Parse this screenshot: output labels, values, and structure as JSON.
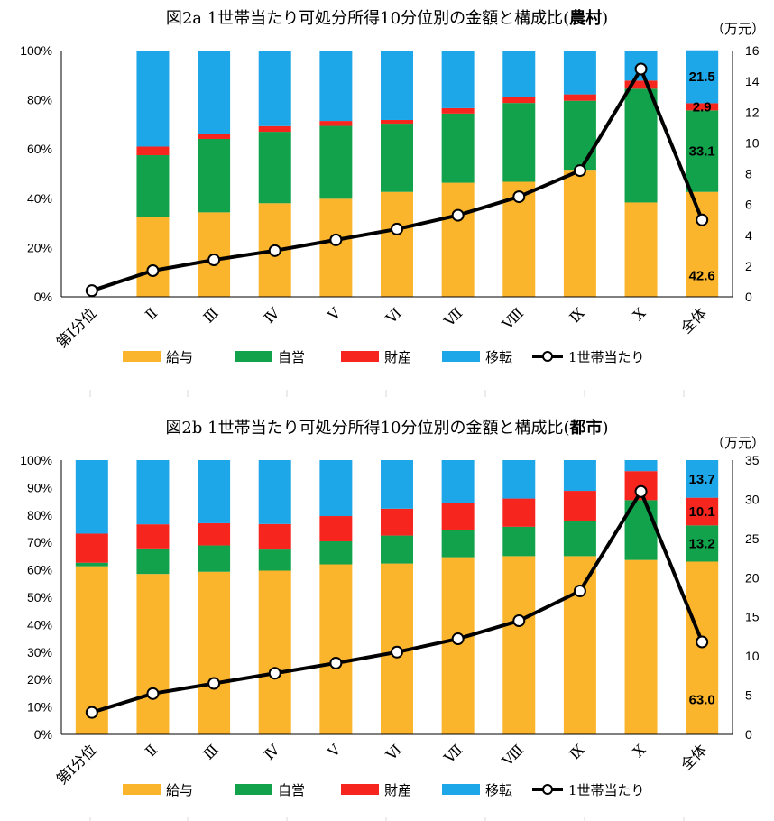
{
  "colors": {
    "salary": "#FBB52D",
    "self": "#12A24B",
    "property": "#F6261F",
    "transfer": "#1EA7E8",
    "line": "#000000"
  },
  "chart_data": [
    {
      "type": "bar",
      "stacked": true,
      "percent": true,
      "title_main": "図2a 1世帯当たり可処分所得10分位別の金額と構成比(",
      "title_em": "農村",
      "title_end": ")",
      "secondary_unit": "（万元）",
      "categories": [
        "第Ⅰ分位",
        "Ⅱ",
        "Ⅲ",
        "Ⅳ",
        "Ⅴ",
        "Ⅵ",
        "Ⅶ",
        "Ⅷ",
        "Ⅸ",
        "Ⅹ",
        "全体"
      ],
      "ylim": [
        0,
        100
      ],
      "y_ticks": [
        "0%",
        "20%",
        "40%",
        "60%",
        "80%",
        "100%"
      ],
      "y2lim": [
        0,
        16
      ],
      "y2_ticks": [
        "0",
        "2",
        "4",
        "6",
        "8",
        "10",
        "12",
        "14",
        "16"
      ],
      "legend_position": "bottom",
      "series": [
        {
          "name": "給与",
          "color_key": "salary",
          "values": [
            0,
            32.5,
            34.3,
            38,
            39.8,
            42.6,
            46.3,
            46.7,
            51.6,
            38.3,
            42.6
          ]
        },
        {
          "name": "自営",
          "color_key": "self",
          "values": [
            0,
            25,
            29.8,
            29,
            29.6,
            27.7,
            28.1,
            32,
            28,
            46.2,
            33.1
          ]
        },
        {
          "name": "財産",
          "color_key": "property",
          "values": [
            0,
            3.5,
            2,
            2.3,
            2,
            1.5,
            2.2,
            2.4,
            2.6,
            3.3,
            2.9
          ]
        },
        {
          "name": "移転",
          "color_key": "transfer",
          "values": [
            0,
            39,
            33.9,
            30.7,
            28.6,
            28.2,
            23.4,
            18.9,
            17.8,
            12.2,
            21.5
          ]
        }
      ],
      "line": {
        "name": "1世帯当たり",
        "values": [
          0.4,
          1.7,
          2.4,
          3.0,
          3.7,
          4.4,
          5.3,
          6.5,
          8.2,
          14.8,
          5.0
        ]
      },
      "data_labels": [
        {
          "label": "21.5",
          "series": 3
        },
        {
          "label": "2.9",
          "series": 2
        },
        {
          "label": "33.1",
          "series": 1
        },
        {
          "label": "42.6",
          "series": 0
        }
      ]
    },
    {
      "type": "bar",
      "stacked": true,
      "percent": true,
      "title_main": "図2b 1世帯当たり可処分所得10分位別の金額と構成比(",
      "title_em": "都市",
      "title_end": ")",
      "secondary_unit": "（万元）",
      "categories": [
        "第Ⅰ分位",
        "Ⅱ",
        "Ⅲ",
        "Ⅳ",
        "Ⅴ",
        "Ⅵ",
        "Ⅶ",
        "Ⅷ",
        "Ⅸ",
        "Ⅹ",
        "全体"
      ],
      "ylim": [
        0,
        100
      ],
      "y_ticks": [
        "0%",
        "10%",
        "20%",
        "30%",
        "40%",
        "50%",
        "60%",
        "70%",
        "80%",
        "90%",
        "100%"
      ],
      "y2lim": [
        0,
        35
      ],
      "y2_ticks": [
        "0",
        "5",
        "10",
        "15",
        "20",
        "25",
        "30",
        "35"
      ],
      "legend_position": "bottom",
      "series": [
        {
          "name": "給与",
          "color_key": "salary",
          "values": [
            61.3,
            58.5,
            59.3,
            59.7,
            62,
            62.3,
            64.6,
            65,
            65,
            63.6,
            63.0
          ]
        },
        {
          "name": "自営",
          "color_key": "self",
          "values": [
            1.3,
            9.3,
            9.6,
            7.7,
            8.4,
            10.2,
            9.8,
            10.7,
            12.7,
            21.8,
            13.2
          ]
        },
        {
          "name": "財産",
          "color_key": "property",
          "values": [
            10.6,
            8.8,
            8.1,
            9.3,
            9.2,
            9.8,
            10,
            10.3,
            11.1,
            10.6,
            10.1
          ]
        },
        {
          "name": "移転",
          "color_key": "transfer",
          "values": [
            26.8,
            23.4,
            23,
            23.3,
            20.4,
            17.7,
            15.6,
            14,
            11.2,
            4,
            13.7
          ]
        }
      ],
      "line": {
        "name": "1世帯当たり",
        "values": [
          2.8,
          5.2,
          6.5,
          7.8,
          9.1,
          10.5,
          12.2,
          14.5,
          18.3,
          31.0,
          11.8
        ]
      },
      "data_labels": [
        {
          "label": "13.7",
          "series": 3
        },
        {
          "label": "10.1",
          "series": 2
        },
        {
          "label": "13.2",
          "series": 1
        },
        {
          "label": "63.0",
          "series": 0
        }
      ]
    }
  ]
}
